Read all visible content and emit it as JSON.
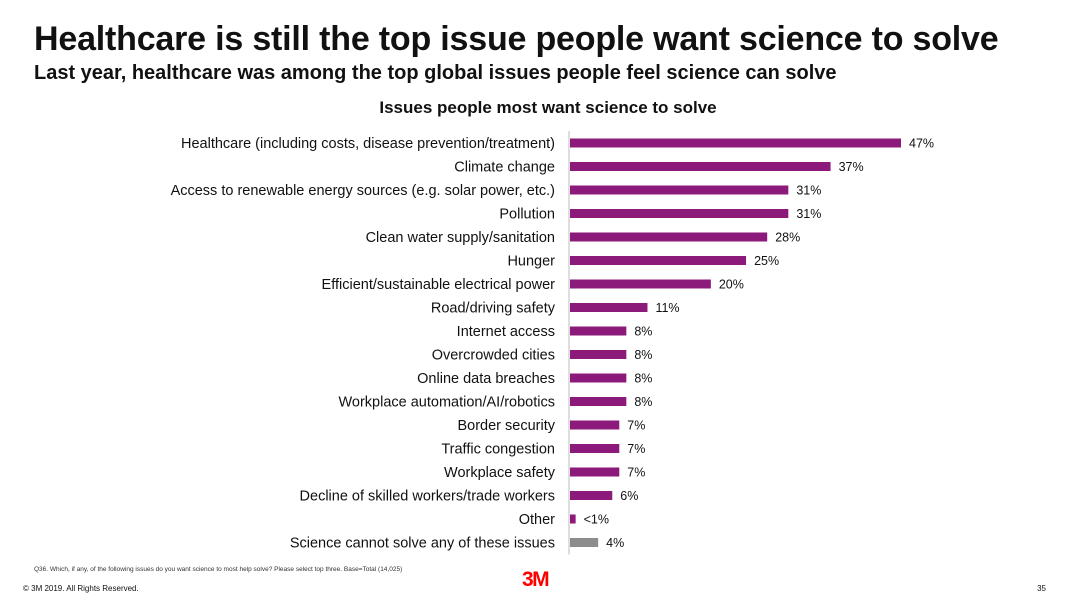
{
  "header": {
    "title": "Healthcare is still the top issue people want science to solve",
    "subtitle": "Last year, healthcare was among the top global issues people feel science can solve"
  },
  "chart_data": {
    "type": "bar",
    "orientation": "horizontal",
    "title": "Issues people most want science to solve",
    "categories": [
      "Healthcare (including costs, disease prevention/treatment)",
      "Climate change",
      "Access to renewable energy sources (e.g. solar power, etc.)",
      "Pollution",
      "Clean water supply/sanitation",
      "Hunger",
      "Efficient/sustainable electrical power",
      "Road/driving safety",
      "Internet access",
      "Overcrowded cities",
      "Online data breaches",
      "Workplace automation/AI/robotics",
      "Border security",
      "Traffic congestion",
      "Workplace safety",
      "Decline of skilled workers/trade workers",
      "Other",
      "Science cannot solve any of these issues"
    ],
    "values": [
      47,
      37,
      31,
      31,
      28,
      25,
      20,
      11,
      8,
      8,
      8,
      8,
      7,
      7,
      7,
      6,
      0.8,
      4
    ],
    "value_labels": [
      "47%",
      "37%",
      "31%",
      "31%",
      "28%",
      "25%",
      "20%",
      "11%",
      "8%",
      "8%",
      "8%",
      "8%",
      "7%",
      "7%",
      "7%",
      "6%",
      "<1%",
      "4%"
    ],
    "colors": [
      "#8b1a7a",
      "#8b1a7a",
      "#8b1a7a",
      "#8b1a7a",
      "#8b1a7a",
      "#8b1a7a",
      "#8b1a7a",
      "#8b1a7a",
      "#8b1a7a",
      "#8b1a7a",
      "#8b1a7a",
      "#8b1a7a",
      "#8b1a7a",
      "#8b1a7a",
      "#8b1a7a",
      "#8b1a7a",
      "#8b1a7a",
      "#8c8c8c"
    ],
    "xlim": [
      0,
      50
    ],
    "xlabel": "",
    "ylabel": ""
  },
  "footer": {
    "footnote": "Q36. Which, if any, of the following issues do you want science to most help solve? Please select top three. Base=Total (14,025)",
    "copyright": "© 3M 2019.   All Rights Reserved.",
    "logo": "3M",
    "page_number": "35"
  }
}
